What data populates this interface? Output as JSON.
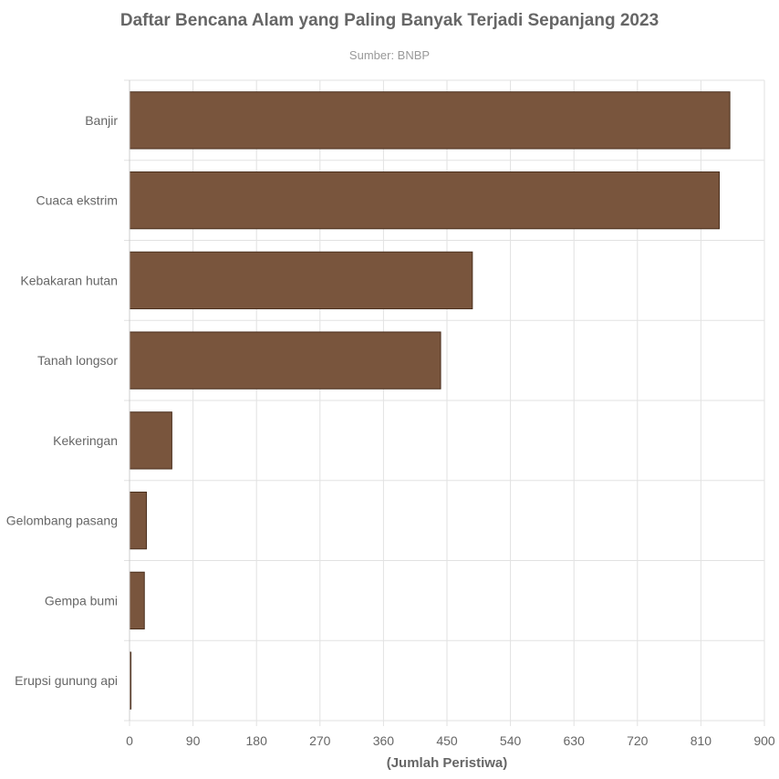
{
  "chart_data": {
    "type": "bar",
    "orientation": "horizontal",
    "title": "Daftar Bencana Alam yang Paling Banyak Terjadi Sepanjang 2023",
    "subtitle": "Sumber: BNBP",
    "xlabel": "(Jumlah Peristiwa)",
    "ylabel": "",
    "categories": [
      "Banjir",
      "Cuaca ekstrim",
      "Kebakaran hutan",
      "Tanah longsor",
      "Kekeringan",
      "Gelombang pasang",
      "Gempa bumi",
      "Erupsi gunung api"
    ],
    "values": [
      851,
      836,
      486,
      441,
      60,
      24,
      21,
      2
    ],
    "xlim": [
      0,
      900
    ],
    "xticks": [
      0,
      90,
      180,
      270,
      360,
      450,
      540,
      630,
      720,
      810,
      900
    ],
    "grid": true,
    "legend": "none",
    "colors": {
      "bar": "#79553d",
      "bar_border": "#4a2f1e",
      "grid": "#e2e2e2",
      "text": "#666666"
    }
  }
}
